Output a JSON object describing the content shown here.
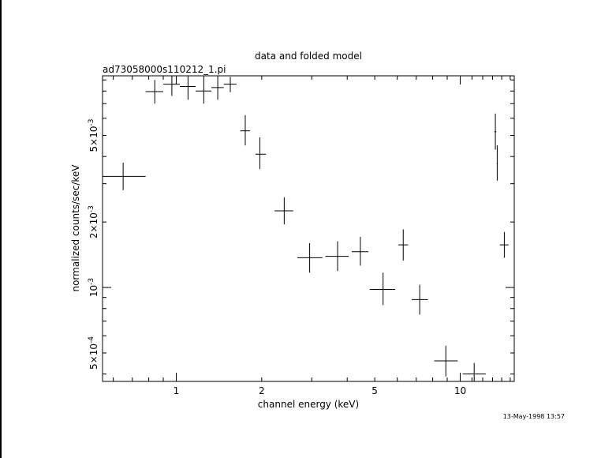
{
  "window": {
    "title": ""
  },
  "chart_data": {
    "type": "scatter",
    "title": "data and folded model",
    "filename": "ad73058000s110212_1.pi",
    "xlabel": "channel energy (keV)",
    "ylabel": "normalized counts/sec/keV",
    "timestamp": "13-May-1998 13:57",
    "x_scale": "log",
    "y_scale": "log",
    "xlim": [
      0.55,
      15.5
    ],
    "ylim": [
      0.00037,
      0.0094
    ],
    "x_ticks": [
      {
        "value": 1,
        "label": "1"
      },
      {
        "value": 2,
        "label": "2"
      },
      {
        "value": 5,
        "label": "5"
      },
      {
        "value": 10,
        "label": "10"
      }
    ],
    "y_ticks": [
      {
        "value": 0.0005,
        "mantissa": "5",
        "exponent": "-4"
      },
      {
        "value": 0.001,
        "mantissa": "",
        "exponent": "-3"
      },
      {
        "value": 0.002,
        "mantissa": "2",
        "exponent": "-3"
      },
      {
        "value": 0.005,
        "mantissa": "5",
        "exponent": "-3"
      }
    ],
    "grid": false,
    "legend": "none",
    "series": [
      {
        "points": [
          {
            "x": 0.65,
            "xlo": 0.55,
            "xhi": 0.78,
            "y": 0.00324,
            "ylo": 0.0028,
            "yhi": 0.00375
          },
          {
            "x": 0.84,
            "xlo": 0.78,
            "xhi": 0.9,
            "y": 0.00795,
            "ylo": 0.007,
            "yhi": 0.009
          },
          {
            "x": 0.965,
            "xlo": 0.9,
            "xhi": 1.03,
            "y": 0.0086,
            "ylo": 0.0076,
            "yhi": 0.0094
          },
          {
            "x": 1.1,
            "xlo": 1.03,
            "xhi": 1.17,
            "y": 0.0084,
            "ylo": 0.0073,
            "yhi": 0.0094
          },
          {
            "x": 1.25,
            "xlo": 1.17,
            "xhi": 1.33,
            "y": 0.008,
            "ylo": 0.007,
            "yhi": 0.0094
          },
          {
            "x": 1.4,
            "xlo": 1.33,
            "xhi": 1.47,
            "y": 0.0083,
            "ylo": 0.0073,
            "yhi": 0.0094
          },
          {
            "x": 1.55,
            "xlo": 1.47,
            "xhi": 1.63,
            "y": 0.0086,
            "ylo": 0.0079,
            "yhi": 0.0093
          },
          {
            "x": 1.75,
            "xlo": 1.68,
            "xhi": 1.82,
            "y": 0.00525,
            "ylo": 0.0045,
            "yhi": 0.0062
          },
          {
            "x": 1.97,
            "xlo": 1.9,
            "xhi": 2.07,
            "y": 0.0041,
            "ylo": 0.0035,
            "yhi": 0.0049
          },
          {
            "x": 2.4,
            "xlo": 2.22,
            "xhi": 2.58,
            "y": 0.00225,
            "ylo": 0.00195,
            "yhi": 0.0026
          },
          {
            "x": 2.95,
            "xlo": 2.67,
            "xhi": 3.27,
            "y": 0.00137,
            "ylo": 0.00117,
            "yhi": 0.0016
          },
          {
            "x": 3.7,
            "xlo": 3.35,
            "xhi": 4.05,
            "y": 0.00139,
            "ylo": 0.00119,
            "yhi": 0.00163
          },
          {
            "x": 4.45,
            "xlo": 4.15,
            "xhi": 4.75,
            "y": 0.00146,
            "ylo": 0.00126,
            "yhi": 0.00171
          },
          {
            "x": 5.35,
            "xlo": 4.8,
            "xhi": 5.9,
            "y": 0.00098,
            "ylo": 0.00083,
            "yhi": 0.00117
          },
          {
            "x": 6.3,
            "xlo": 6.05,
            "xhi": 6.55,
            "y": 0.00157,
            "ylo": 0.00133,
            "yhi": 0.00185
          },
          {
            "x": 7.2,
            "xlo": 6.75,
            "xhi": 7.7,
            "y": 0.00088,
            "ylo": 0.00075,
            "yhi": 0.00103
          },
          {
            "x": 8.9,
            "xlo": 8.1,
            "xhi": 9.8,
            "y": 0.00046,
            "ylo": 0.00039,
            "yhi": 0.00054
          },
          {
            "x": 11.2,
            "xlo": 10.2,
            "xhi": 12.3,
            "y": 0.0004,
            "ylo": 0.00037,
            "yhi": 0.00045
          },
          {
            "x": 13.3,
            "xlo": 13.2,
            "xhi": 13.4,
            "y": 0.0052,
            "ylo": 0.0043,
            "yhi": 0.0063
          },
          {
            "x": 13.5,
            "xlo": 13.45,
            "xhi": 13.55,
            "y": 0.0037,
            "ylo": 0.0031,
            "yhi": 0.0045
          },
          {
            "x": 14.3,
            "xlo": 13.8,
            "xhi": 14.8,
            "y": 0.00157,
            "ylo": 0.00137,
            "yhi": 0.0018
          }
        ]
      }
    ]
  }
}
